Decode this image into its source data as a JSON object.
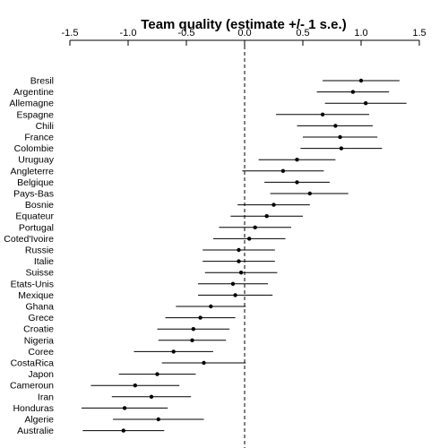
{
  "chart_data": {
    "type": "dot-errorbar",
    "title": "Team quality (estimate +/- 1 s.e.)",
    "xlabel": "",
    "ylabel": "",
    "xlim": [
      -1.5,
      1.5
    ],
    "x_ticks": [
      -1.5,
      -1.0,
      -0.5,
      0.0,
      0.5,
      1.0,
      1.5
    ],
    "x_tick_labels": [
      "-1.5",
      "-1.0",
      "-0.5",
      "0.0",
      "0.5",
      "1.0",
      "1.5"
    ],
    "reference_line": {
      "x": 0,
      "style": "dashed"
    },
    "axis_position": "top",
    "point_color": "#000000",
    "errorbar_color": "#000000",
    "teams": [
      {
        "name": "Bresil",
        "estimate": 1.0,
        "lower": 0.67,
        "upper": 1.33
      },
      {
        "name": "Argentine",
        "estimate": 0.93,
        "lower": 0.62,
        "upper": 1.24
      },
      {
        "name": "Allemagne",
        "estimate": 1.04,
        "lower": 0.69,
        "upper": 1.39
      },
      {
        "name": "Espagne",
        "estimate": 0.67,
        "lower": 0.27,
        "upper": 1.07
      },
      {
        "name": "Chili",
        "estimate": 0.78,
        "lower": 0.45,
        "upper": 1.1
      },
      {
        "name": "France",
        "estimate": 0.82,
        "lower": 0.5,
        "upper": 1.14
      },
      {
        "name": "Colombie",
        "estimate": 0.83,
        "lower": 0.48,
        "upper": 1.18
      },
      {
        "name": "Uruguay",
        "estimate": 0.45,
        "lower": 0.12,
        "upper": 0.78
      },
      {
        "name": "Angleterre",
        "estimate": 0.33,
        "lower": -0.02,
        "upper": 0.68
      },
      {
        "name": "Belgique",
        "estimate": 0.45,
        "lower": 0.17,
        "upper": 0.73
      },
      {
        "name": "Pays-Bas",
        "estimate": 0.56,
        "lower": 0.22,
        "upper": 0.89
      },
      {
        "name": "Bosnie",
        "estimate": 0.25,
        "lower": -0.06,
        "upper": 0.56
      },
      {
        "name": "Equateur",
        "estimate": 0.19,
        "lower": -0.12,
        "upper": 0.5
      },
      {
        "name": "Portugal",
        "estimate": 0.09,
        "lower": -0.22,
        "upper": 0.4
      },
      {
        "name": "Coted'Ivoire",
        "estimate": 0.04,
        "lower": -0.27,
        "upper": 0.35
      },
      {
        "name": "Russie",
        "estimate": -0.05,
        "lower": -0.36,
        "upper": 0.26
      },
      {
        "name": "Italie",
        "estimate": -0.05,
        "lower": -0.36,
        "upper": 0.26
      },
      {
        "name": "Suisse",
        "estimate": -0.03,
        "lower": -0.34,
        "upper": 0.28
      },
      {
        "name": "Etats-Unis",
        "estimate": -0.1,
        "lower": -0.4,
        "upper": 0.2
      },
      {
        "name": "Mexique",
        "estimate": -0.08,
        "lower": -0.4,
        "upper": 0.24
      },
      {
        "name": "Ghana",
        "estimate": -0.29,
        "lower": -0.59,
        "upper": 0.01
      },
      {
        "name": "Grece",
        "estimate": -0.38,
        "lower": -0.68,
        "upper": -0.08
      },
      {
        "name": "Croatie",
        "estimate": -0.44,
        "lower": -0.75,
        "upper": -0.13
      },
      {
        "name": "Nigeria",
        "estimate": -0.45,
        "lower": -0.74,
        "upper": -0.16
      },
      {
        "name": "Coree",
        "estimate": -0.61,
        "lower": -0.95,
        "upper": -0.27
      },
      {
        "name": "CostaRica",
        "estimate": -0.35,
        "lower": -0.71,
        "upper": 0.01
      },
      {
        "name": "Japon",
        "estimate": -0.75,
        "lower": -1.08,
        "upper": -0.42
      },
      {
        "name": "Cameroun",
        "estimate": -0.94,
        "lower": -1.32,
        "upper": -0.56
      },
      {
        "name": "Iran",
        "estimate": -0.8,
        "lower": -1.14,
        "upper": -0.46
      },
      {
        "name": "Honduras",
        "estimate": -1.03,
        "lower": -1.4,
        "upper": -0.66
      },
      {
        "name": "Algerie",
        "estimate": -0.74,
        "lower": -1.13,
        "upper": -0.35
      },
      {
        "name": "Australie",
        "estimate": -1.04,
        "lower": -1.39,
        "upper": -0.69
      }
    ]
  }
}
